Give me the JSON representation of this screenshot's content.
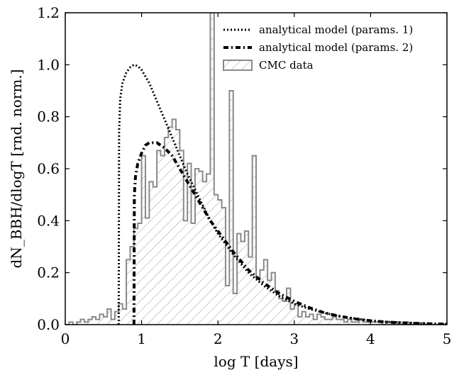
{
  "chart_data": {
    "type": "line",
    "xlabel": "log T [days]",
    "ylabel": "dN_BBH/dlogT [rnd. norm.]",
    "xlim": [
      0,
      5
    ],
    "ylim": [
      0,
      1.2
    ],
    "xticks": [
      "0",
      "1",
      "2",
      "3",
      "4",
      "5"
    ],
    "yticks": [
      "0.0",
      "0.2",
      "0.4",
      "0.6",
      "0.8",
      "1.0",
      "1.2"
    ],
    "legend_position": "top-right",
    "grid": false,
    "series": [
      {
        "name": "analytical model (params. 1)",
        "style": "dotted",
        "color": "#000000",
        "x": [
          0.7,
          0.705,
          0.72,
          0.75,
          0.8,
          0.85,
          0.9,
          0.95,
          1.0,
          1.1,
          1.2,
          1.3,
          1.4,
          1.5,
          1.6,
          1.7,
          1.8,
          1.9,
          2.0,
          2.2,
          2.4,
          2.6,
          2.8,
          3.0,
          3.2,
          3.4,
          3.6,
          3.8,
          4.0,
          4.2,
          4.4,
          4.6,
          4.8,
          5.0
        ],
        "y": [
          0.0,
          0.74,
          0.87,
          0.93,
          0.97,
          0.99,
          1.0,
          0.995,
          0.98,
          0.93,
          0.86,
          0.79,
          0.72,
          0.65,
          0.58,
          0.52,
          0.46,
          0.4,
          0.35,
          0.27,
          0.2,
          0.15,
          0.11,
          0.08,
          0.06,
          0.045,
          0.032,
          0.023,
          0.016,
          0.011,
          0.008,
          0.006,
          0.004,
          0.003
        ]
      },
      {
        "name": "analytical model (params. 2)",
        "style": "dash-dot",
        "color": "#000000",
        "x": [
          0.9,
          0.905,
          0.92,
          0.95,
          1.0,
          1.05,
          1.1,
          1.2,
          1.3,
          1.4,
          1.5,
          1.6,
          1.7,
          1.8,
          1.9,
          2.0,
          2.2,
          2.4,
          2.6,
          2.8,
          3.0,
          3.2,
          3.4,
          3.6,
          3.8,
          4.0,
          4.2,
          4.4,
          4.6,
          4.8,
          5.0
        ],
        "y": [
          0.0,
          0.5,
          0.57,
          0.62,
          0.66,
          0.69,
          0.7,
          0.7,
          0.68,
          0.65,
          0.6,
          0.55,
          0.5,
          0.45,
          0.4,
          0.36,
          0.28,
          0.21,
          0.16,
          0.12,
          0.09,
          0.065,
          0.045,
          0.032,
          0.022,
          0.015,
          0.01,
          0.007,
          0.005,
          0.003,
          0.002
        ]
      }
    ],
    "histogram": {
      "name": "CMC data",
      "style": "hatched-step",
      "edge_color": "#8a8a8a",
      "bin_width": 0.05,
      "x_start": 0.0,
      "values": [
        0.0,
        0.01,
        0.0,
        0.01,
        0.02,
        0.01,
        0.02,
        0.03,
        0.02,
        0.04,
        0.03,
        0.06,
        0.02,
        0.05,
        0.08,
        0.06,
        0.25,
        0.3,
        0.37,
        0.39,
        0.65,
        0.41,
        0.55,
        0.53,
        0.67,
        0.65,
        0.72,
        0.76,
        0.79,
        0.75,
        0.67,
        0.4,
        0.62,
        0.39,
        0.6,
        0.59,
        0.55,
        0.58,
        1.2,
        0.5,
        0.48,
        0.45,
        0.15,
        0.9,
        0.12,
        0.35,
        0.32,
        0.36,
        0.26,
        0.65,
        0.18,
        0.21,
        0.25,
        0.17,
        0.2,
        0.13,
        0.1,
        0.09,
        0.14,
        0.06,
        0.08,
        0.03,
        0.05,
        0.03,
        0.04,
        0.02,
        0.04,
        0.03,
        0.02,
        0.02,
        0.03,
        0.02,
        0.02,
        0.01,
        0.02,
        0.01,
        0.01,
        0.02,
        0.01,
        0.01,
        0.01,
        0.01,
        0.01,
        0.0,
        0.01,
        0.01,
        0.0,
        0.01,
        0.0,
        0.01,
        0.0,
        0.0,
        0.0,
        0.0,
        0.0,
        0.0,
        0.0,
        0.0,
        0.0,
        0.0
      ]
    }
  }
}
